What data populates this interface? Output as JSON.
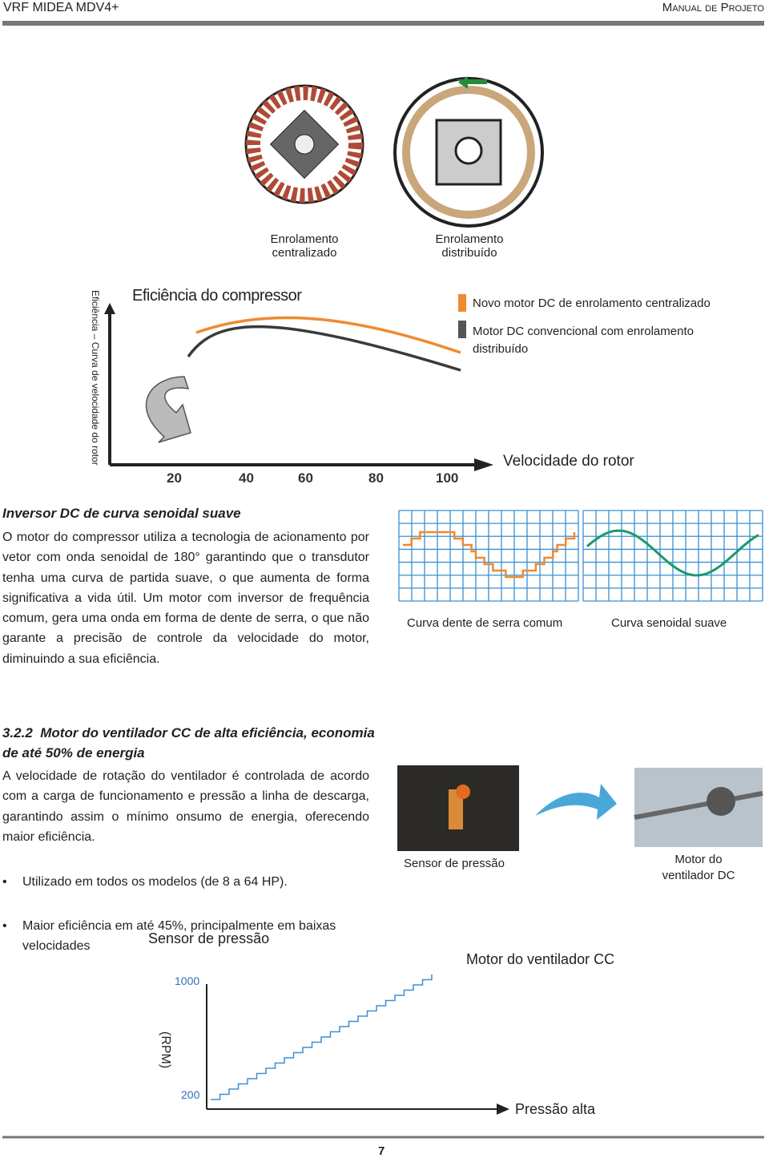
{
  "header": {
    "left": "VRF MIDEA MDV4+",
    "right": "Manual de Projeto"
  },
  "motors": [
    {
      "label": "Enrolamento\ncentralizado"
    },
    {
      "label": "Enrolamento\ndistribuído"
    }
  ],
  "compressor_chart": {
    "title": "Eficiência do compressor",
    "y_label": "Eficiência – Curva de velocidade do rotor",
    "legend": [
      "Novo motor DC de enrolamento centralizado",
      "Motor DC convencional com enrolamento\ndistribuído"
    ],
    "x_label": "Velocidade do rotor",
    "x_ticks": [
      "20",
      "40",
      "60",
      "80",
      "100"
    ]
  },
  "section1": {
    "title": "Inversor DC de curva senoidal suave",
    "body": "O motor do compressor utiliza a tecnologia de acionamento por vetor com onda senoidal de 180°  garantindo que o transdutor tenha uma curva de partida suave, o que aumenta de forma significativa a vida útil. Um motor com inversor de frequência comum, gera uma onda em forma de dente de serra, o que não garante a precisão de controle da velocidade do motor, diminuindo a sua eficiência."
  },
  "waves": [
    {
      "label": "Curva dente de serra comum"
    },
    {
      "label": "Curva senoidal suave"
    }
  ],
  "section2": {
    "number": "3.2.2",
    "title": "Motor do ventilador CC de alta eficiência, economia de até 50% de energia",
    "body": "A velocidade de rotação do ventilador é controlada de acordo com a carga de funcionamento e pressão a linha de descarga, garantindo assim o mínimo onsumo de energia, oferecendo maior eficiência.",
    "bullets": [
      "Utilizado em todos os modelos (de 8 a 64 HP).",
      "Maior eficiência em até 45%, principalmente em baixas velocidades"
    ]
  },
  "photos": [
    {
      "label": "Sensor de pressão"
    },
    {
      "label": "Motor do\nventilador DC"
    }
  ],
  "fan_chart": {
    "title": "Sensor de pressão",
    "series_label": "Motor do ventilador CC",
    "y_ticks": [
      "1000",
      "200"
    ],
    "y_label": "(RPM)",
    "x_label": "Pressão alta"
  },
  "footer": {
    "page_number": "7"
  }
}
